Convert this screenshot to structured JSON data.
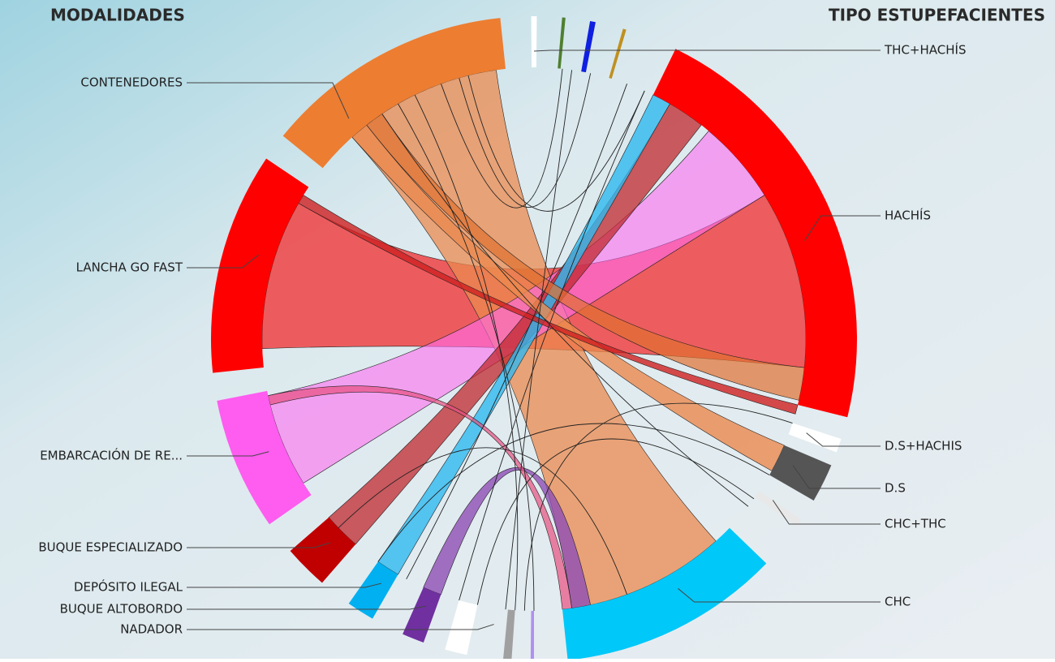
{
  "header": {
    "left_title": "MODALIDADES",
    "right_title": "TIPO ESTUPEFACIENTES"
  },
  "modalidades": [
    "CONTENEDORES",
    "LANCHA GO FAST",
    "EMBARCACIÓN DE RE...",
    "BUQUE ESPECIALIZADO",
    "DEPÓSITO ILEGAL",
    "BUQUE ALTOBORDO",
    "NADADOR"
  ],
  "estupefacientes": [
    "THC+HACHÍS",
    "HACHÍS",
    "D.S+HACHIS",
    "D.S",
    "CHC+THC",
    "CHC"
  ]
}
